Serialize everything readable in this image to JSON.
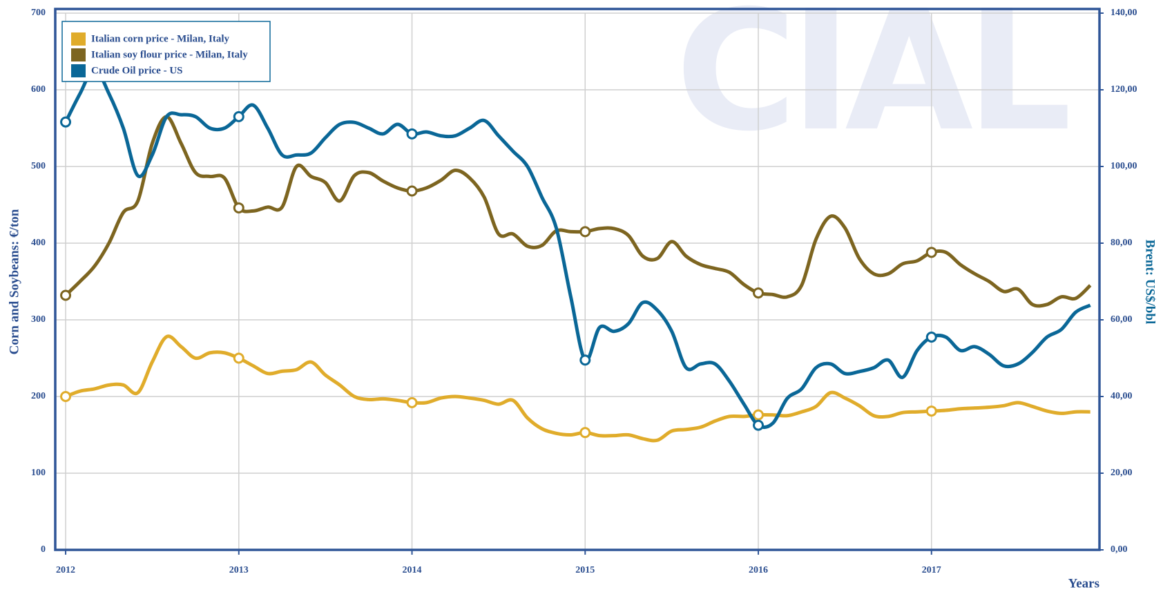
{
  "chart_data": {
    "type": "line",
    "watermark": "CIAL",
    "ylabel": "Corn and Soybeans: €/ton",
    "y2label": "Brent: US$/bbl",
    "xlabel": "Years",
    "x": [
      2012,
      2012.083,
      2012.167,
      2012.25,
      2012.333,
      2012.417,
      2012.5,
      2012.583,
      2012.667,
      2012.75,
      2012.833,
      2012.917,
      2013,
      2013.083,
      2013.167,
      2013.25,
      2013.333,
      2013.417,
      2013.5,
      2013.583,
      2013.667,
      2013.75,
      2013.833,
      2013.917,
      2014,
      2014.083,
      2014.167,
      2014.25,
      2014.333,
      2014.417,
      2014.5,
      2014.583,
      2014.667,
      2014.75,
      2014.833,
      2014.917,
      2015,
      2015.083,
      2015.167,
      2015.25,
      2015.333,
      2015.417,
      2015.5,
      2015.583,
      2015.667,
      2015.75,
      2015.833,
      2015.917,
      2016,
      2016.083,
      2016.167,
      2016.25,
      2016.333,
      2016.417,
      2016.5,
      2016.583,
      2016.667,
      2016.75,
      2016.833,
      2016.917,
      2017,
      2017.083,
      2017.167,
      2017.25,
      2017.333,
      2017.417,
      2017.5,
      2017.583,
      2017.667,
      2017.75,
      2017.833,
      2017.917
    ],
    "series": [
      {
        "name": "Italian corn price - Milan, Italy",
        "color": "#e0ac2b",
        "axis": "y",
        "values": [
          200,
          207,
          210,
          215,
          215,
          205,
          245,
          278,
          265,
          250,
          257,
          257,
          250,
          240,
          230,
          233,
          235,
          245,
          228,
          215,
          200,
          196,
          197,
          195,
          192,
          192,
          198,
          200,
          198,
          195,
          190,
          195,
          172,
          158,
          152,
          150,
          153,
          149,
          149,
          150,
          145,
          143,
          155,
          157,
          160,
          168,
          174,
          174,
          176,
          176,
          175,
          180,
          187,
          205,
          198,
          188,
          175,
          174,
          179,
          180,
          181,
          182,
          184,
          185,
          186,
          188,
          192,
          187,
          181,
          178,
          180,
          180
        ]
      },
      {
        "name": "Italian soy flour price - Milan, Italy",
        "color": "#7d6520",
        "axis": "y",
        "values": [
          332,
          350,
          370,
          400,
          440,
          455,
          530,
          565,
          530,
          492,
          487,
          485,
          446,
          442,
          447,
          447,
          500,
          487,
          479,
          455,
          488,
          492,
          481,
          472,
          468,
          472,
          482,
          495,
          485,
          460,
          412,
          412,
          396,
          397,
          416,
          415,
          415,
          419,
          419,
          410,
          383,
          380,
          402,
          383,
          372,
          367,
          362,
          346,
          335,
          333,
          330,
          345,
          405,
          435,
          420,
          380,
          360,
          360,
          373,
          377,
          388,
          388,
          372,
          360,
          350,
          337,
          340,
          320,
          320,
          330,
          328,
          345
        ]
      },
      {
        "name": "Crude Oil price - US",
        "color": "#0a6797",
        "axis": "y2",
        "values": [
          111.6,
          119,
          125.5,
          119,
          110,
          97.6,
          103,
          113,
          113.5,
          113,
          110,
          110,
          113,
          116,
          110,
          103,
          103,
          103.5,
          107.5,
          111,
          111.5,
          110,
          108.5,
          111,
          108.5,
          109,
          108,
          108,
          110,
          112,
          108,
          104,
          100,
          92,
          84,
          66,
          49.5,
          58,
          57,
          59,
          64.5,
          62.5,
          57,
          47.5,
          48.5,
          48.5,
          44,
          38,
          32.5,
          33,
          39.5,
          42,
          47.5,
          48.5,
          46,
          46.5,
          47.5,
          49.5,
          45,
          52,
          55.5,
          55.5,
          52,
          53,
          51,
          48,
          48.5,
          51.5,
          55.5,
          57.5,
          62,
          63.8
        ]
      }
    ],
    "xlim": [
      2011.94,
      2017.97
    ],
    "xticks": [
      2012,
      2013,
      2014,
      2015,
      2016,
      2017
    ],
    "ylim": [
      0,
      700
    ],
    "yticks": [
      0,
      100,
      200,
      300,
      400,
      500,
      600,
      700
    ],
    "y2lim": [
      0,
      140
    ],
    "y2ticks": [
      {
        "value": 0,
        "label": "0,00"
      },
      {
        "value": 20,
        "label": "20,00"
      },
      {
        "value": 40,
        "label": "40,00"
      },
      {
        "value": 60,
        "label": "60,00"
      },
      {
        "value": 80,
        "label": "80,00"
      },
      {
        "value": 100,
        "label": "100,00"
      },
      {
        "value": 120,
        "label": "120,00"
      },
      {
        "value": 140,
        "label": "140,00"
      }
    ],
    "grid": true,
    "legend": "upper left"
  }
}
